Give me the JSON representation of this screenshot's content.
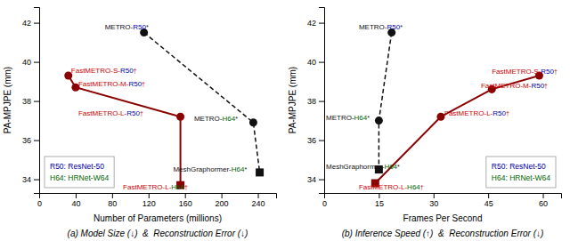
{
  "chart_data": [
    {
      "type": "scatter",
      "title": "(a) Model Size (↓)  &  Reconstruction Error (↓)",
      "xlabel": "Number of Parameters (millions)",
      "ylabel": "PA-MPJPE (mm)",
      "xlim": [
        0,
        260
      ],
      "ylim": [
        33.3,
        42.8
      ],
      "xticks": [
        0,
        40,
        80,
        120,
        160,
        200,
        240
      ],
      "yticks": [
        34,
        36,
        38,
        40,
        42
      ],
      "grid": false,
      "legend": "lower left",
      "series": [
        {
          "type": "line",
          "color": "#111111",
          "line_style": "dashed",
          "marker": "none",
          "x": [
            115,
            235,
            242
          ],
          "values": [
            41.5,
            36.9,
            34.35
          ]
        },
        {
          "type": "scatter",
          "color": "#111111",
          "marker": "circle",
          "x": [
            115,
            235
          ],
          "values": [
            41.5,
            36.9
          ]
        },
        {
          "type": "scatter",
          "color": "#111111",
          "marker": "square",
          "x": [
            242
          ],
          "values": [
            34.35
          ]
        },
        {
          "type": "line",
          "color": "#8B0000",
          "line_style": "solid",
          "marker": "none",
          "x": [
            32,
            40,
            155,
            155
          ],
          "values": [
            39.3,
            38.7,
            37.2,
            33.7
          ]
        },
        {
          "type": "scatter",
          "color": "#8B0000",
          "marker": "circle",
          "x": [
            32,
            40,
            155
          ],
          "values": [
            39.3,
            38.7,
            37.2
          ]
        },
        {
          "type": "scatter",
          "color": "#8B0000",
          "marker": "square",
          "x": [
            155
          ],
          "values": [
            33.7
          ]
        }
      ],
      "annotations": [
        {
          "x": 72,
          "y": 41.78,
          "parts": [
            {
              "text": "METRO-",
              "color": "#111111"
            },
            {
              "text": "R50",
              "color": "#0000AA"
            },
            {
              "text": "*",
              "color": "#111111"
            }
          ]
        },
        {
          "x": 35,
          "y": 39.55,
          "parts": [
            {
              "text": "FastMETRO-S-",
              "color": "#CC0000"
            },
            {
              "text": "R50",
              "color": "#0000AA"
            },
            {
              "text": "†",
              "color": "#CC0000"
            }
          ]
        },
        {
          "x": 43,
          "y": 38.85,
          "parts": [
            {
              "text": "FastMETRO-M-",
              "color": "#CC0000"
            },
            {
              "text": "R50",
              "color": "#0000AA"
            },
            {
              "text": "†",
              "color": "#CC0000"
            }
          ]
        },
        {
          "x": 43,
          "y": 37.38,
          "parts": [
            {
              "text": "FastMETRO-L-",
              "color": "#CC0000"
            },
            {
              "text": "R50",
              "color": "#0000AA"
            },
            {
              "text": "†",
              "color": "#CC0000"
            }
          ]
        },
        {
          "x": 170,
          "y": 37.1,
          "parts": [
            {
              "text": "METRO-",
              "color": "#111111"
            },
            {
              "text": "H64",
              "color": "#006400"
            },
            {
              "text": "*",
              "color": "#111111"
            }
          ]
        },
        {
          "x": 147,
          "y": 34.5,
          "parts": [
            {
              "text": "MeshGraphormer-",
              "color": "#111111"
            },
            {
              "text": "H64",
              "color": "#006400"
            },
            {
              "text": "*",
              "color": "#111111"
            }
          ]
        },
        {
          "x": 92,
          "y": 33.58,
          "parts": [
            {
              "text": "FastMETRO-L-",
              "color": "#CC0000"
            },
            {
              "text": "H64",
              "color": "#006400"
            },
            {
              "text": "†",
              "color": "#CC0000"
            }
          ]
        },
        {
          "text": "R50: ResNet-50",
          "color": "#0000AA"
        },
        {
          "text": "H64: HRNet-W64",
          "color": "#006400"
        }
      ]
    },
    {
      "type": "scatter",
      "title": "(b) Inference Speed (↑)  &  Reconstruction Error (↓)",
      "xlabel": "Frames Per Second",
      "ylabel": "PA-MPJPE (mm)",
      "xlim": [
        0,
        65
      ],
      "ylim": [
        33.3,
        42.8
      ],
      "xticks": [
        0,
        15,
        30,
        45,
        60
      ],
      "yticks": [
        34,
        36,
        38,
        40,
        42
      ],
      "grid": false,
      "legend": "lower right",
      "series": [
        {
          "type": "line",
          "color": "#111111",
          "line_style": "dashed",
          "marker": "none",
          "x": [
            18.5,
            15,
            15
          ],
          "values": [
            41.5,
            37.0,
            34.5
          ]
        },
        {
          "type": "scatter",
          "color": "#111111",
          "marker": "circle",
          "x": [
            18.5,
            15
          ],
          "values": [
            41.5,
            37.0
          ]
        },
        {
          "type": "scatter",
          "color": "#111111",
          "marker": "square",
          "x": [
            15
          ],
          "values": [
            34.5
          ]
        },
        {
          "type": "line",
          "color": "#8B0000",
          "line_style": "solid",
          "marker": "none",
          "x": [
            14,
            32,
            46,
            59
          ],
          "values": [
            33.8,
            37.2,
            38.6,
            39.3
          ]
        },
        {
          "type": "scatter",
          "color": "#8B0000",
          "marker": "circle",
          "x": [
            32,
            46,
            59
          ],
          "values": [
            37.2,
            38.6,
            39.3
          ]
        },
        {
          "type": "scatter",
          "color": "#8B0000",
          "marker": "square",
          "x": [
            14
          ],
          "values": [
            33.8
          ]
        }
      ],
      "annotations": [
        {
          "x": 9.5,
          "y": 41.78,
          "parts": [
            {
              "text": "METRO-",
              "color": "#111111"
            },
            {
              "text": "R50",
              "color": "#0000AA"
            },
            {
              "text": "*",
              "color": "#111111"
            }
          ]
        },
        {
          "x": 0.5,
          "y": 37.15,
          "parts": [
            {
              "text": "METRO-",
              "color": "#111111"
            },
            {
              "text": "H64",
              "color": "#006400"
            },
            {
              "text": "*",
              "color": "#111111"
            }
          ]
        },
        {
          "x": 0.5,
          "y": 34.65,
          "parts": [
            {
              "text": "MeshGraphormer-",
              "color": "#111111"
            },
            {
              "text": "H64",
              "color": "#006400"
            },
            {
              "text": "*",
              "color": "#111111"
            }
          ]
        },
        {
          "x": 9.5,
          "y": 33.58,
          "parts": [
            {
              "text": "FastMETRO-L-",
              "color": "#CC0000"
            },
            {
              "text": "H64",
              "color": "#006400"
            },
            {
              "text": "†",
              "color": "#CC0000"
            }
          ]
        },
        {
          "x": 33,
          "y": 37.38,
          "parts": [
            {
              "text": "FastMETRO-L-",
              "color": "#CC0000"
            },
            {
              "text": "R50",
              "color": "#0000AA"
            },
            {
              "text": "†",
              "color": "#CC0000"
            }
          ]
        },
        {
          "x": 43,
          "y": 38.78,
          "parts": [
            {
              "text": "FastMETRO-M-",
              "color": "#CC0000"
            },
            {
              "text": "R50",
              "color": "#0000AA"
            },
            {
              "text": "†",
              "color": "#CC0000"
            }
          ]
        },
        {
          "x": 46,
          "y": 39.52,
          "parts": [
            {
              "text": "FastMETRO-S-",
              "color": "#CC0000"
            },
            {
              "text": "R50",
              "color": "#0000AA"
            },
            {
              "text": "†",
              "color": "#CC0000"
            }
          ]
        },
        {
          "text": "R50: ResNet-50",
          "color": "#0000AA"
        },
        {
          "text": "H64: HRNet-W64",
          "color": "#006400"
        }
      ]
    }
  ]
}
